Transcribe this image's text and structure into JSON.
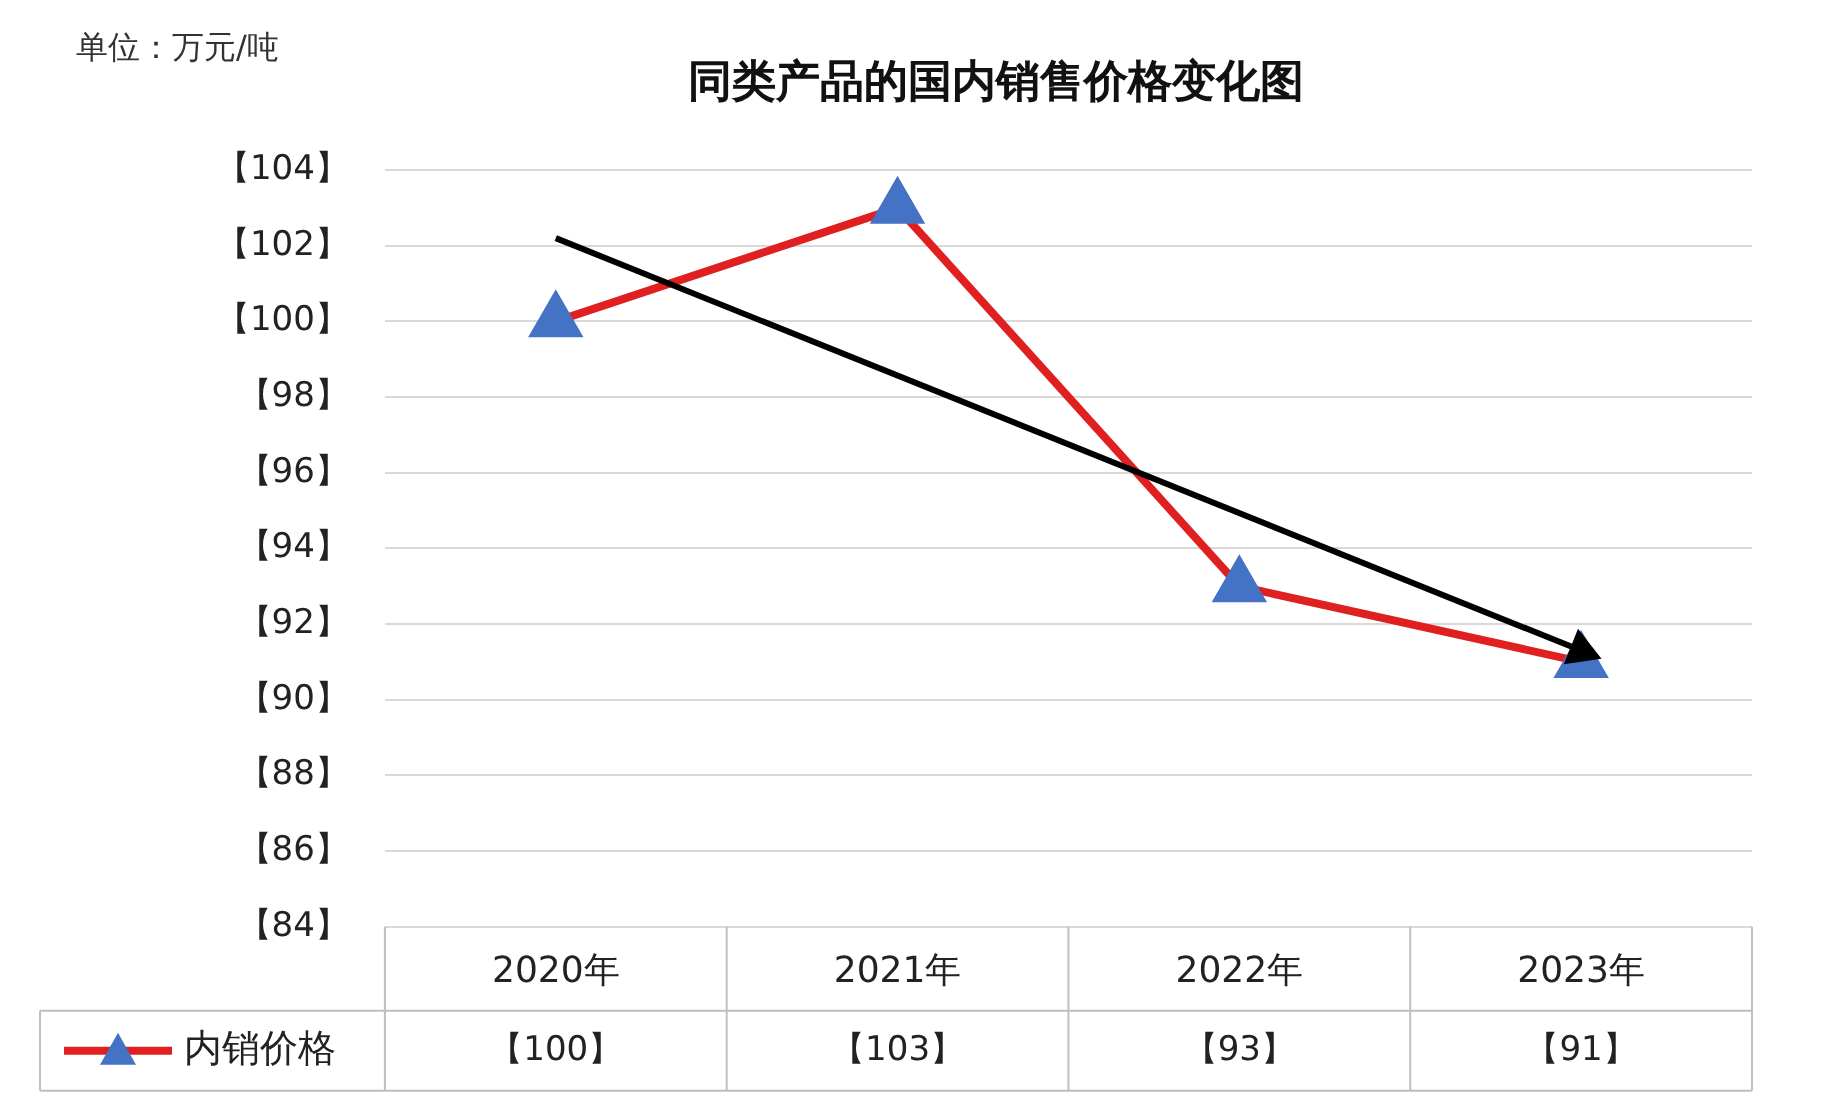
{
  "chart_data": {
    "type": "line",
    "title": "同类产品的国内销售价格变化图",
    "annotations": [
      "单位：万元/吨"
    ],
    "categories": [
      "2020年",
      "2021年",
      "2022年",
      "2023年"
    ],
    "series": [
      {
        "name": "内销价格",
        "color": "#e02020",
        "colors": [
          "#4472c4",
          "#4472c4",
          "#4472c4",
          "#4472c4"
        ],
        "values": [
          100,
          103,
          93,
          91
        ],
        "value_labels": [
          "【100】",
          "【103】",
          "【93】",
          "【91】"
        ],
        "marker": "triangle"
      },
      {
        "type": "line",
        "color": "#000000",
        "x": [
          "2020年",
          "2023年"
        ],
        "values": [
          102.2,
          91.3
        ],
        "marker": "triangle"
      }
    ],
    "ylim": [
      84,
      104
    ],
    "yticks": [
      {
        "value": 84,
        "label": "【84】"
      },
      {
        "value": 86,
        "label": "【86】"
      },
      {
        "value": 88,
        "label": "【88】"
      },
      {
        "value": 90,
        "label": "【90】"
      },
      {
        "value": 92,
        "label": "【92】"
      },
      {
        "value": 94,
        "label": "【94】"
      },
      {
        "value": 96,
        "label": "【96】"
      },
      {
        "value": 98,
        "label": "【98】"
      },
      {
        "value": 100,
        "label": "【100】"
      },
      {
        "value": 102,
        "label": "【102】"
      },
      {
        "value": 104,
        "label": "【104】"
      }
    ],
    "grid": "y",
    "legend": "bottom"
  }
}
